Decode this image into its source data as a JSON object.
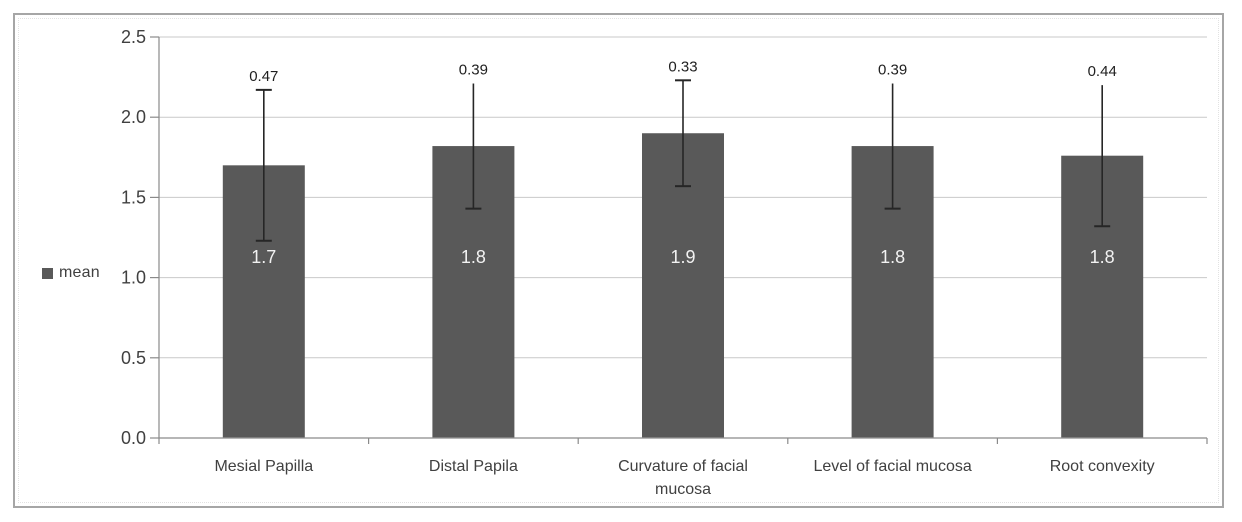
{
  "chart_data": {
    "type": "bar",
    "title": "",
    "xlabel": "",
    "ylabel": "",
    "categories": [
      "Mesial Papilla",
      "Distal Papila",
      "Curvature of facial mucosa",
      "Level of facial mucosa",
      "Root convexity"
    ],
    "series": [
      {
        "name": "mean",
        "values": [
          1.7,
          1.8,
          1.9,
          1.8,
          1.8
        ]
      }
    ],
    "value_labels": [
      "1.7",
      "1.8",
      "1.9",
      "1.8",
      "1.8"
    ],
    "error_values": [
      0.47,
      0.39,
      0.33,
      0.39,
      0.44
    ],
    "error_labels": [
      "0.47",
      "0.39",
      "0.33",
      "0.39",
      "0.44"
    ],
    "bar_heights": [
      1.7,
      1.82,
      1.9,
      1.82,
      1.76
    ],
    "ylim": [
      0,
      2.5
    ],
    "ytick_step": 0.5,
    "ytick_labels": [
      "0.0",
      "0.5",
      "1.0",
      "1.5",
      "2.0",
      "2.5"
    ],
    "grid": true,
    "legend": {
      "label": "mean",
      "position": "middle-left"
    },
    "error_top_caps": [
      true,
      false,
      true,
      false,
      false
    ],
    "colors": {
      "bar": "#595959",
      "error_bar": "#262626",
      "gridline": "#c9c9c9",
      "axis": "#8a8a8a",
      "tick_text": "#404040",
      "error_text": "#1f1f1f",
      "value_text": "#f2f2f2",
      "frame_border": "#a6a6a6",
      "background": "#ffffff"
    }
  }
}
